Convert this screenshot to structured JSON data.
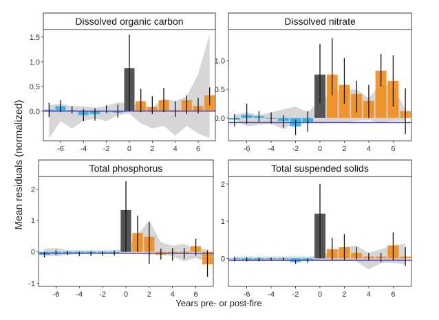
{
  "figure": {
    "ylabel": "Mean residuals (normalized)",
    "xlabel": "Years pre- or post-fire"
  },
  "colors": {
    "pre_fire": "#29aee8",
    "fire_year": "#555555",
    "post_fire": "#f28c1c",
    "band": "#cfcfcf",
    "reference_line": "#5d4fc2",
    "errorbar": "#111111"
  },
  "chart_data": [
    {
      "type": "bar",
      "title": "Dissolved organic carbon",
      "xlabel": "Years pre- or post-fire",
      "ylabel": "Mean residuals (normalized)",
      "x": [
        -7,
        -6,
        -5,
        -4,
        -3,
        -2,
        -1,
        0,
        1,
        2,
        3,
        4,
        5,
        6,
        7
      ],
      "values": [
        0.03,
        0.1,
        0.02,
        -0.08,
        -0.06,
        0.0,
        -0.03,
        0.87,
        0.2,
        0.08,
        0.22,
        0.02,
        0.22,
        0.1,
        0.32
      ],
      "err_low": [
        -0.12,
        -0.02,
        -0.05,
        -0.2,
        -0.19,
        -0.04,
        -0.13,
        0.0,
        -0.02,
        -0.06,
        -0.02,
        -0.12,
        -0.06,
        -0.05,
        0.12
      ],
      "err_high": [
        0.17,
        0.22,
        0.1,
        0.04,
        0.06,
        0.12,
        0.13,
        1.55,
        0.45,
        0.3,
        0.47,
        0.2,
        0.32,
        0.27,
        0.48
      ],
      "band_low": [
        -0.55,
        -0.2,
        -0.35,
        -0.2,
        -0.15,
        -0.2,
        -0.08,
        -0.05,
        -0.25,
        -0.35,
        -0.3,
        -0.5,
        -0.3,
        -0.45,
        -0.55
      ],
      "band_high": [
        0.12,
        0.15,
        0.1,
        0.1,
        0.07,
        0.1,
        0.18,
        0.15,
        0.12,
        0.08,
        0.25,
        0.2,
        0.3,
        0.75,
        1.55
      ],
      "xlim": [
        -7.5,
        7.5
      ],
      "ylim": [
        -0.6,
        1.65
      ],
      "xticks": [
        -6,
        -4,
        -2,
        0,
        2,
        4,
        6
      ],
      "yticks": [
        0.0,
        0.5,
        1.0,
        1.5
      ],
      "ytick_labels": [
        "0.0",
        "0.5",
        "1.0",
        "1.5"
      ],
      "reference": 0.0
    },
    {
      "type": "bar",
      "title": "Dissolved nitrate",
      "xlabel": "Years pre- or post-fire",
      "ylabel": "Mean residuals (normalized)",
      "x": [
        -7,
        -6,
        -5,
        -4,
        -3,
        -2,
        -1,
        0,
        1,
        2,
        3,
        4,
        5,
        6,
        7
      ],
      "values": [
        -0.03,
        0.05,
        0.03,
        0.0,
        -0.05,
        -0.15,
        -0.07,
        0.76,
        0.76,
        0.58,
        0.42,
        0.3,
        0.83,
        0.65,
        0.12
      ],
      "err_low": [
        -0.15,
        -0.1,
        -0.07,
        -0.1,
        -0.17,
        -0.3,
        -0.24,
        0.26,
        0.4,
        0.25,
        0.1,
        0.0,
        0.55,
        0.2,
        -0.28
      ],
      "err_high": [
        0.07,
        0.25,
        0.12,
        0.1,
        0.05,
        -0.03,
        0.12,
        1.3,
        1.4,
        1.05,
        0.65,
        0.58,
        1.12,
        1.1,
        0.52
      ],
      "band_low": [
        -0.02,
        -0.15,
        -0.12,
        -0.1,
        -0.2,
        -0.08,
        -0.04,
        -0.1,
        -0.08,
        -0.08,
        -0.05,
        -0.04,
        -0.08,
        -0.05,
        -0.05
      ],
      "band_high": [
        0.05,
        0.1,
        0.05,
        0.1,
        0.15,
        0.2,
        0.1,
        0.3,
        0.45,
        0.5,
        0.5,
        0.35,
        0.6,
        0.55,
        0.15
      ],
      "xlim": [
        -7.5,
        7.5
      ],
      "ylim": [
        -0.4,
        1.55
      ],
      "xticks": [
        -6,
        -4,
        -2,
        0,
        2,
        4,
        6
      ],
      "yticks": [
        0.0,
        0.5,
        1.0
      ],
      "ytick_labels": [
        "0.0",
        "0.5",
        "1.0"
      ],
      "reference": -0.08
    },
    {
      "type": "bar",
      "title": "Total phosphorus",
      "xlabel": "Years pre- or post-fire",
      "ylabel": "Mean residuals (normalized)",
      "x": [
        -7,
        -6,
        -5,
        -4,
        -3,
        -2,
        -1,
        0,
        1,
        2,
        3,
        4,
        5,
        6,
        7
      ],
      "values": [
        -0.1,
        -0.05,
        -0.04,
        -0.06,
        -0.06,
        -0.05,
        -0.04,
        1.33,
        0.6,
        0.48,
        -0.1,
        -0.05,
        -0.05,
        0.18,
        -0.4
      ],
      "err_low": [
        -0.18,
        -0.1,
        -0.1,
        -0.13,
        -0.13,
        -0.12,
        -0.12,
        0.0,
        0.0,
        -0.38,
        -0.25,
        -0.28,
        -0.22,
        -0.12,
        -0.8
      ],
      "err_high": [
        0.0,
        0.05,
        0.03,
        0.0,
        0.02,
        0.02,
        0.05,
        2.25,
        1.15,
        0.95,
        0.1,
        0.12,
        0.12,
        0.42,
        0.05
      ],
      "band_low": [
        -0.1,
        -0.15,
        -0.1,
        -0.05,
        -0.05,
        -0.05,
        -0.05,
        -0.05,
        -0.05,
        -0.1,
        -0.05,
        -0.15,
        -0.3,
        -0.2,
        -0.3
      ],
      "band_high": [
        0.1,
        0.12,
        0.05,
        0.05,
        0.05,
        0.05,
        0.05,
        0.1,
        0.55,
        1.0,
        0.3,
        0.2,
        0.25,
        0.1,
        0.08
      ],
      "xlim": [
        -7.5,
        7.5
      ],
      "ylim": [
        -1.1,
        2.4
      ],
      "xticks": [
        -6,
        -4,
        -2,
        0,
        2,
        4,
        6
      ],
      "yticks": [
        -1,
        0,
        1,
        2
      ],
      "ytick_labels": [
        "-1",
        "0",
        "1",
        "2"
      ],
      "reference": -0.05
    },
    {
      "type": "bar",
      "title": "Total suspended solids",
      "xlabel": "Years pre- or post-fire",
      "ylabel": "Mean residuals (normalized)",
      "x": [
        -7,
        -6,
        -5,
        -4,
        -3,
        -2,
        -1,
        0,
        1,
        2,
        3,
        4,
        5,
        6,
        7
      ],
      "values": [
        -0.02,
        -0.03,
        -0.03,
        -0.02,
        -0.02,
        -0.1,
        -0.06,
        1.2,
        0.25,
        0.3,
        0.15,
        0.05,
        0.05,
        0.35,
        0.05
      ],
      "err_low": [
        -0.08,
        -0.08,
        -0.08,
        -0.06,
        -0.06,
        -0.15,
        -0.12,
        0.0,
        -0.05,
        -0.05,
        -0.02,
        -0.05,
        -0.1,
        -0.05,
        -0.2
      ],
      "err_high": [
        0.04,
        0.03,
        0.03,
        0.02,
        0.03,
        -0.04,
        0.0,
        2.0,
        0.55,
        0.65,
        0.3,
        0.15,
        0.15,
        0.7,
        0.3
      ],
      "band_low": [
        -0.05,
        -0.05,
        -0.05,
        -0.05,
        -0.05,
        -0.05,
        -0.05,
        -0.05,
        -0.05,
        -0.05,
        -0.08,
        -0.3,
        -0.12,
        -0.12,
        -0.15
      ],
      "band_high": [
        0.05,
        0.05,
        0.05,
        0.05,
        0.05,
        0.05,
        0.05,
        0.08,
        0.2,
        0.3,
        0.35,
        0.15,
        0.25,
        0.35,
        0.4
      ],
      "xlim": [
        -7.5,
        7.5
      ],
      "ylim": [
        -0.75,
        2.2
      ],
      "xticks": [
        -6,
        -4,
        -2,
        0,
        2,
        4,
        6
      ],
      "yticks": [
        0,
        1,
        2
      ],
      "ytick_labels": [
        "0",
        "1",
        "2"
      ],
      "reference": -0.05
    }
  ]
}
